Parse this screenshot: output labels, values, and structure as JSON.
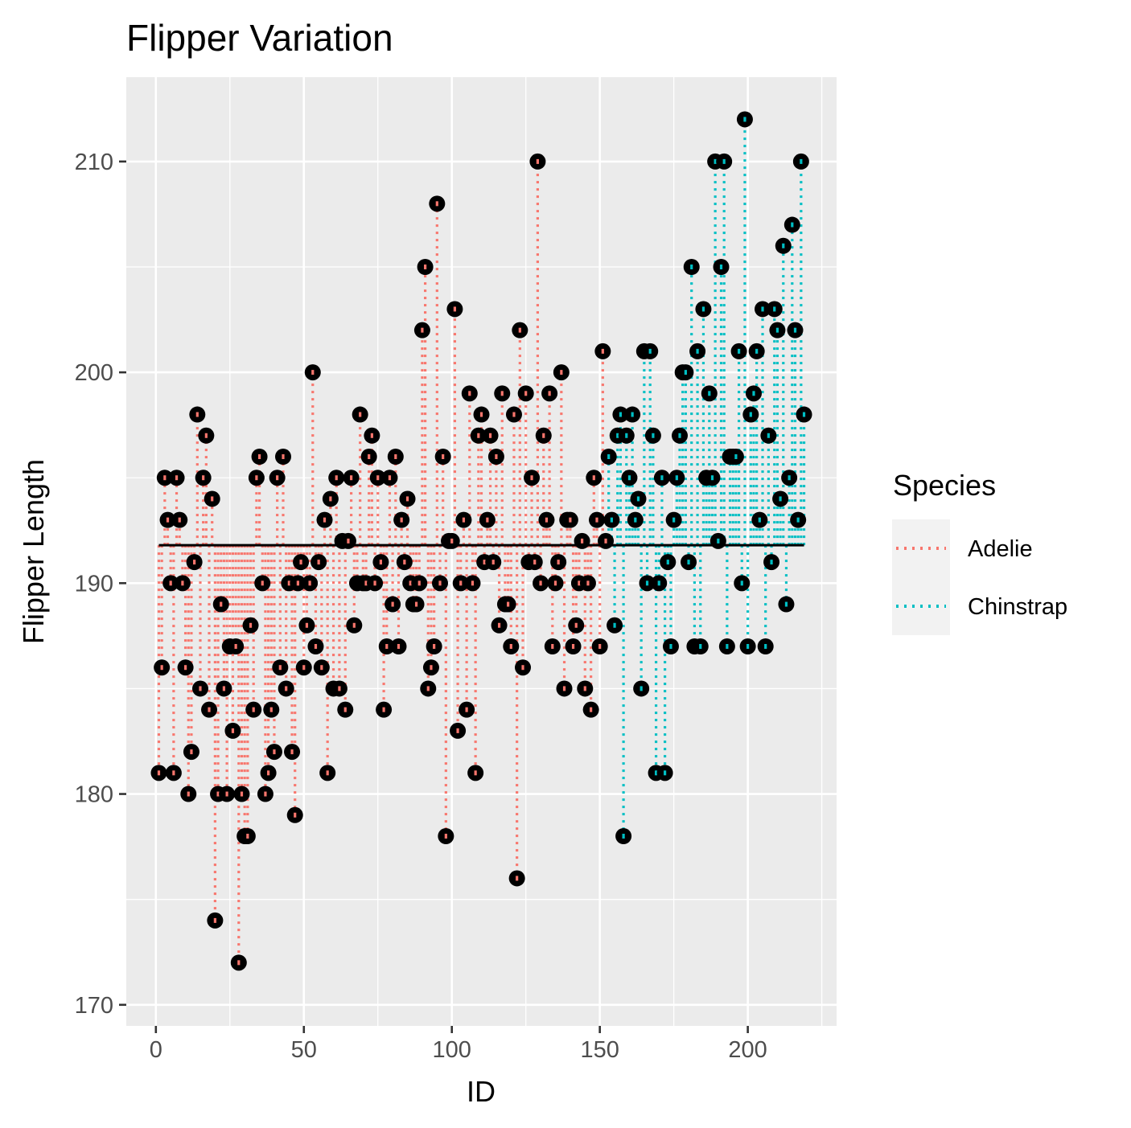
{
  "chart_data": {
    "type": "scatter",
    "title": "Flipper Variation",
    "xlabel": "ID",
    "ylabel": "Flipper Length",
    "xlim": [
      -10,
      230
    ],
    "ylim": [
      169,
      214
    ],
    "x_ticks": [
      0,
      50,
      100,
      150,
      200
    ],
    "y_ticks": [
      170,
      180,
      190,
      200,
      210
    ],
    "grid": true,
    "mean_line": 191.8,
    "legend": {
      "title": "Species",
      "position": "right",
      "entries": [
        "Adelie",
        "Chinstrap"
      ]
    },
    "colors": {
      "Adelie": "#f8766d",
      "Chinstrap": "#00bfc4",
      "point": "#000000",
      "mean": "#000000",
      "panel": "#ebebeb",
      "grid": "#ffffff"
    },
    "series": [
      {
        "name": "Adelie",
        "x": [
          1,
          2,
          3,
          4,
          5,
          6,
          7,
          8,
          9,
          10,
          11,
          12,
          13,
          14,
          15,
          16,
          17,
          18,
          19,
          20,
          21,
          22,
          23,
          24,
          25,
          26,
          27,
          28,
          29,
          30,
          31,
          32,
          33,
          34,
          35,
          36,
          37,
          38,
          39,
          40,
          41,
          42,
          43,
          44,
          45,
          46,
          47,
          48,
          49,
          50,
          51,
          52,
          53,
          54,
          55,
          56,
          57,
          58,
          59,
          60,
          61,
          62,
          63,
          64,
          65,
          66,
          67,
          68,
          69,
          70,
          71,
          72,
          73,
          74,
          75,
          76,
          77,
          78,
          79,
          80,
          81,
          82,
          83,
          84,
          85,
          86,
          87,
          88,
          89,
          90,
          91,
          92,
          93,
          94,
          95,
          96,
          97,
          98,
          99,
          100,
          101,
          102,
          103,
          104,
          105,
          106,
          107,
          108,
          109,
          110,
          111,
          112,
          113,
          114,
          115,
          116,
          117,
          118,
          119,
          120,
          121,
          122,
          123,
          124,
          125,
          126,
          127,
          128,
          129,
          130,
          131,
          132,
          133,
          134,
          135,
          136,
          137,
          138,
          139,
          140,
          141,
          142,
          143,
          144,
          145,
          146,
          147,
          148,
          149,
          150,
          151,
          152
        ],
        "y": [
          181,
          186,
          195,
          193,
          190,
          181,
          195,
          193,
          190,
          186,
          180,
          182,
          191,
          198,
          185,
          195,
          197,
          184,
          194,
          174,
          180,
          189,
          185,
          180,
          187,
          183,
          187,
          172,
          180,
          178,
          178,
          188,
          184,
          195,
          196,
          190,
          180,
          181,
          184,
          182,
          195,
          186,
          196,
          185,
          190,
          182,
          179,
          190,
          191,
          186,
          188,
          190,
          200,
          187,
          191,
          186,
          193,
          181,
          194,
          185,
          195,
          185,
          192,
          184,
          192,
          195,
          188,
          190,
          198,
          190,
          190,
          196,
          197,
          190,
          195,
          191,
          184,
          187,
          195,
          189,
          196,
          187,
          193,
          191,
          194,
          190,
          189,
          189,
          190,
          202,
          205,
          185,
          186,
          187,
          208,
          190,
          196,
          178,
          192,
          192,
          203,
          183,
          190,
          193,
          184,
          199,
          190,
          181,
          197,
          198,
          191,
          193,
          197,
          191,
          196,
          188,
          199,
          189,
          189,
          187,
          198,
          176,
          202,
          186,
          199,
          191,
          195,
          191,
          210,
          190,
          197,
          193,
          199,
          187,
          190,
          191,
          200,
          185,
          193,
          193,
          187,
          188,
          190,
          192,
          185,
          190,
          184,
          195,
          193,
          187,
          201,
          192
        ]
      },
      {
        "name": "Chinstrap",
        "x": [
          153,
          154,
          155,
          156,
          157,
          158,
          159,
          160,
          161,
          162,
          163,
          164,
          165,
          166,
          167,
          168,
          169,
          170,
          171,
          172,
          173,
          174,
          175,
          176,
          177,
          178,
          179,
          180,
          181,
          182,
          183,
          184,
          185,
          186,
          187,
          188,
          189,
          190,
          191,
          192,
          193,
          194,
          195,
          196,
          197,
          198,
          199,
          200,
          201,
          202,
          203,
          204,
          205,
          206,
          207,
          208,
          209,
          210,
          211,
          212,
          213,
          214,
          215,
          216,
          217,
          218,
          219
        ],
        "y": [
          196,
          193,
          188,
          197,
          198,
          178,
          197,
          195,
          198,
          193,
          194,
          185,
          201,
          190,
          201,
          197,
          181,
          190,
          195,
          181,
          191,
          187,
          193,
          195,
          197,
          200,
          200,
          191,
          205,
          187,
          201,
          187,
          203,
          195,
          199,
          195,
          210,
          192,
          205,
          210,
          187,
          196,
          196,
          196,
          201,
          190,
          212,
          187,
          198,
          199,
          201,
          193,
          203,
          187,
          197,
          191,
          203,
          202,
          194,
          206,
          189,
          195,
          207,
          202,
          193,
          210,
          198
        ]
      }
    ]
  }
}
